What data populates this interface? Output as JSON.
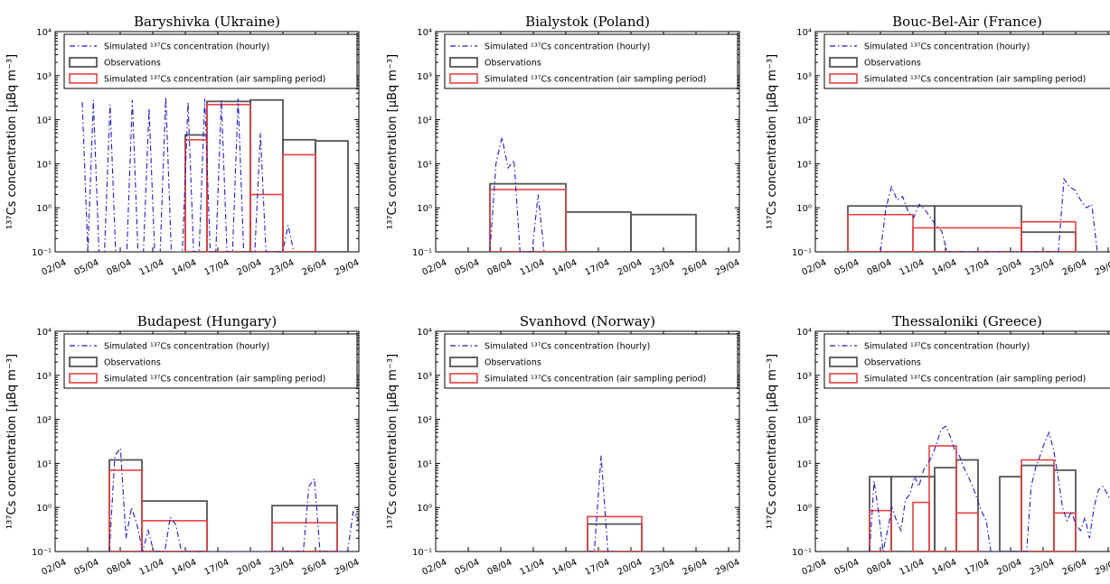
{
  "legend": {
    "hourly": "Simulated ¹³⁷Cs concentration (hourly)",
    "obs": "Observations",
    "period": "Simulated ¹³⁷Cs concentration (air sampling period)"
  },
  "colors": {
    "hourly": "#1a1acc",
    "obs": "#555555",
    "period": "#e84040",
    "hourly_dark": "#111111"
  },
  "ylabel": "¹³⁷Cs concentration [µBq m⁻³]",
  "x_ticks": [
    "02/04",
    "05/04",
    "08/04",
    "11/04",
    "14/04",
    "17/04",
    "20/04",
    "23/04",
    "26/04",
    "29/04"
  ],
  "y_ticks": [
    "10⁻¹",
    "10⁰",
    "10¹",
    "10²",
    "10³",
    "10⁴"
  ],
  "chart_data": [
    {
      "type": "line",
      "title": "Baryshivka (Ukraine)",
      "ylabel": "¹³⁷Cs concentration [µBq m⁻³]",
      "xlim": [
        "02/04",
        "30/04"
      ],
      "ylim": [
        0.1,
        10000
      ],
      "yscale": "log",
      "legend": "top",
      "hourly_start_day": 4.5,
      "hourly": [
        250,
        0.1,
        280,
        0.1,
        0.1,
        220,
        0.1,
        0.1,
        0.1,
        280,
        0.1,
        0.1,
        180,
        0.1,
        0.1,
        330,
        0.1,
        0.1,
        0.1,
        250,
        0.1,
        0.1,
        300,
        0.1,
        0.1,
        280,
        0.1,
        0.1,
        300,
        0.1,
        0.1,
        0.1,
        50,
        0.1,
        0.1,
        0.1,
        0.1,
        0.4,
        0.1
      ],
      "observations": [
        [
          14,
          16,
          45
        ],
        [
          16,
          20,
          260
        ],
        [
          20,
          23,
          280
        ],
        [
          23,
          26,
          35
        ],
        [
          26,
          29,
          33
        ]
      ],
      "simulated_period": [
        [
          14,
          16,
          35
        ],
        [
          16,
          20,
          220
        ],
        [
          20,
          23,
          2
        ],
        [
          23,
          26,
          16
        ]
      ]
    },
    {
      "type": "line",
      "title": "Bialystok (Poland)",
      "ylabel": "¹³⁷Cs concentration [µBq m⁻³]",
      "xlim": [
        "02/04",
        "30/04"
      ],
      "ylim": [
        0.1,
        10000
      ],
      "yscale": "log",
      "legend": "top",
      "hourly_start_day": 7,
      "hourly": [
        0.1,
        10,
        40,
        8,
        12,
        0.1,
        0.1,
        0.1,
        2,
        0.1
      ],
      "observations": [
        [
          7,
          14,
          3.5
        ],
        [
          14,
          20,
          0.8
        ],
        [
          20,
          26,
          0.7
        ]
      ],
      "simulated_period": [
        [
          7,
          14,
          2.6
        ]
      ]
    },
    {
      "type": "line",
      "title": "Bouc-Bel-Air (France)",
      "ylabel": "¹³⁷Cs concentration [µBq m⁻³]",
      "xlim": [
        "02/04",
        "30/04"
      ],
      "ylim": [
        0.1,
        10000
      ],
      "yscale": "log",
      "legend": "top",
      "hourly_start_day": 8,
      "hourly": [
        0.1,
        1,
        3,
        1.5,
        1.8,
        0.8,
        0.6,
        1.2,
        0.9,
        0.6,
        0.4,
        0.3,
        0.1,
        0.1,
        0.1,
        0.1,
        0.1,
        0.1,
        0.1,
        0.1,
        0.1,
        0.1,
        0.1,
        0.1,
        0.1,
        0.1,
        0.1,
        0.1,
        0.1,
        0.1,
        0.1,
        0.1,
        0.1,
        4.5,
        3,
        2.5,
        1.5,
        1,
        1.2,
        0.1
      ],
      "observations": [
        [
          5,
          13,
          1.1
        ],
        [
          13,
          21,
          1.1
        ],
        [
          21,
          26,
          0.28
        ]
      ],
      "simulated_period": [
        [
          5,
          11,
          0.7
        ],
        [
          11,
          21,
          0.35
        ],
        [
          21,
          26,
          0.48
        ]
      ]
    },
    {
      "type": "line",
      "title": "Budapest (Hungary)",
      "ylabel": "¹³⁷Cs concentration [µBq m⁻³]",
      "xlim": [
        "02/04",
        "30/04"
      ],
      "ylim": [
        0.1,
        10000
      ],
      "yscale": "log",
      "legend": "top",
      "hourly_start_day": 7,
      "hourly": [
        0.1,
        15,
        22,
        0.2,
        1,
        0.4,
        0.1,
        0.3,
        0.1,
        0.1,
        0.1,
        0.6,
        0.4,
        0.1,
        0.1,
        0.1,
        0.1,
        0.1,
        0.1,
        0.1,
        0.1,
        0.1,
        0.1,
        0.1,
        0.1,
        0.1,
        0.1,
        0.1,
        0.1,
        0.1,
        0.1,
        0.1,
        0.1,
        0.1,
        0.1,
        0.1,
        3,
        4.5,
        0.1,
        0.1,
        0.1,
        0.1,
        0.1,
        0.1,
        0.8,
        0.5,
        0.1
      ],
      "observations": [
        [
          7,
          10,
          12
        ],
        [
          10,
          16,
          1.4
        ],
        [
          22,
          28,
          1.1
        ]
      ],
      "simulated_period": [
        [
          7,
          10,
          7
        ],
        [
          10,
          16,
          0.5
        ],
        [
          22,
          28,
          0.45
        ]
      ]
    },
    {
      "type": "line",
      "title": "Svanhovd (Norway)",
      "ylabel": "¹³⁷Cs concentration [µBq m⁻³]",
      "xlim": [
        "02/04",
        "30/04"
      ],
      "ylim": [
        0.1,
        10000
      ],
      "yscale": "log",
      "legend": "top",
      "hourly_start_day": 16,
      "hourly": [
        0.1,
        0.1,
        15,
        0.1,
        0.1
      ],
      "observations": [
        [
          16,
          21,
          0.42
        ]
      ],
      "simulated_period": [
        [
          16,
          21,
          0.62
        ]
      ]
    },
    {
      "type": "line",
      "title": "Thessaloniki (Greece)",
      "ylabel": "¹³⁷Cs concentration [µBq m⁻³]",
      "xlim": [
        "02/04",
        "30/04"
      ],
      "ylim": [
        0.1,
        10000
      ],
      "yscale": "log",
      "legend": "top",
      "hourly_start_day": 7,
      "hourly": [
        0.1,
        4,
        0.8,
        0.1,
        0.3,
        1,
        0.5,
        0.3,
        1.5,
        2,
        5,
        3,
        7,
        10,
        15,
        30,
        60,
        70,
        40,
        20,
        15,
        8,
        5,
        3,
        1.5,
        0.8,
        0.5,
        0.1,
        0.1,
        0.1,
        0.1,
        0.1,
        0.1,
        0.1,
        0.1,
        0.1,
        3,
        8,
        15,
        30,
        50,
        20,
        5,
        1,
        0.5,
        0.8,
        0.4,
        0.3,
        0.6,
        0.2,
        1,
        2.5,
        3,
        2,
        1.2,
        0.6,
        0.5,
        0.8,
        0.4
      ],
      "observations": [
        [
          7,
          9,
          5
        ],
        [
          9,
          13,
          5
        ],
        [
          13,
          15,
          8
        ],
        [
          15,
          17,
          12
        ],
        [
          19,
          21,
          5
        ],
        [
          21,
          24,
          9
        ],
        [
          24,
          26,
          7
        ]
      ],
      "simulated_period": [
        [
          7,
          9,
          0.85
        ],
        [
          11,
          12.5,
          1.3
        ],
        [
          12.5,
          15,
          25
        ],
        [
          15,
          17,
          0.75
        ],
        [
          21,
          24,
          12
        ],
        [
          24,
          26,
          0.75
        ]
      ]
    }
  ]
}
